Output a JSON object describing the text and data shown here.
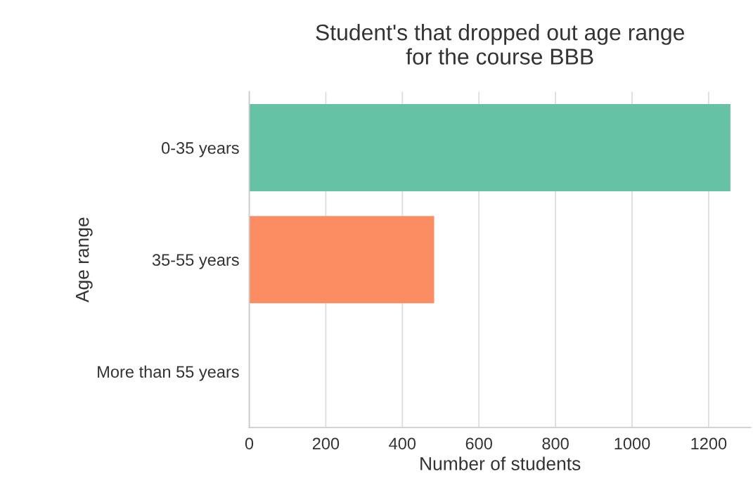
{
  "chart_data": {
    "type": "bar",
    "orientation": "horizontal",
    "title": "Student's that dropped out age range\nfor the course BBB",
    "xlabel": "Number of students",
    "ylabel": "Age range",
    "categories": [
      "0-35 years",
      "35-55 years",
      "More than 55 years"
    ],
    "values": [
      1257,
      483,
      0
    ],
    "colors": [
      "#66c2a5",
      "#fc8d62",
      "#8da0cb"
    ],
    "xlim": [
      0,
      1310
    ],
    "xticks": [
      0,
      200,
      400,
      600,
      800,
      1000,
      1200
    ],
    "grid": "x"
  }
}
